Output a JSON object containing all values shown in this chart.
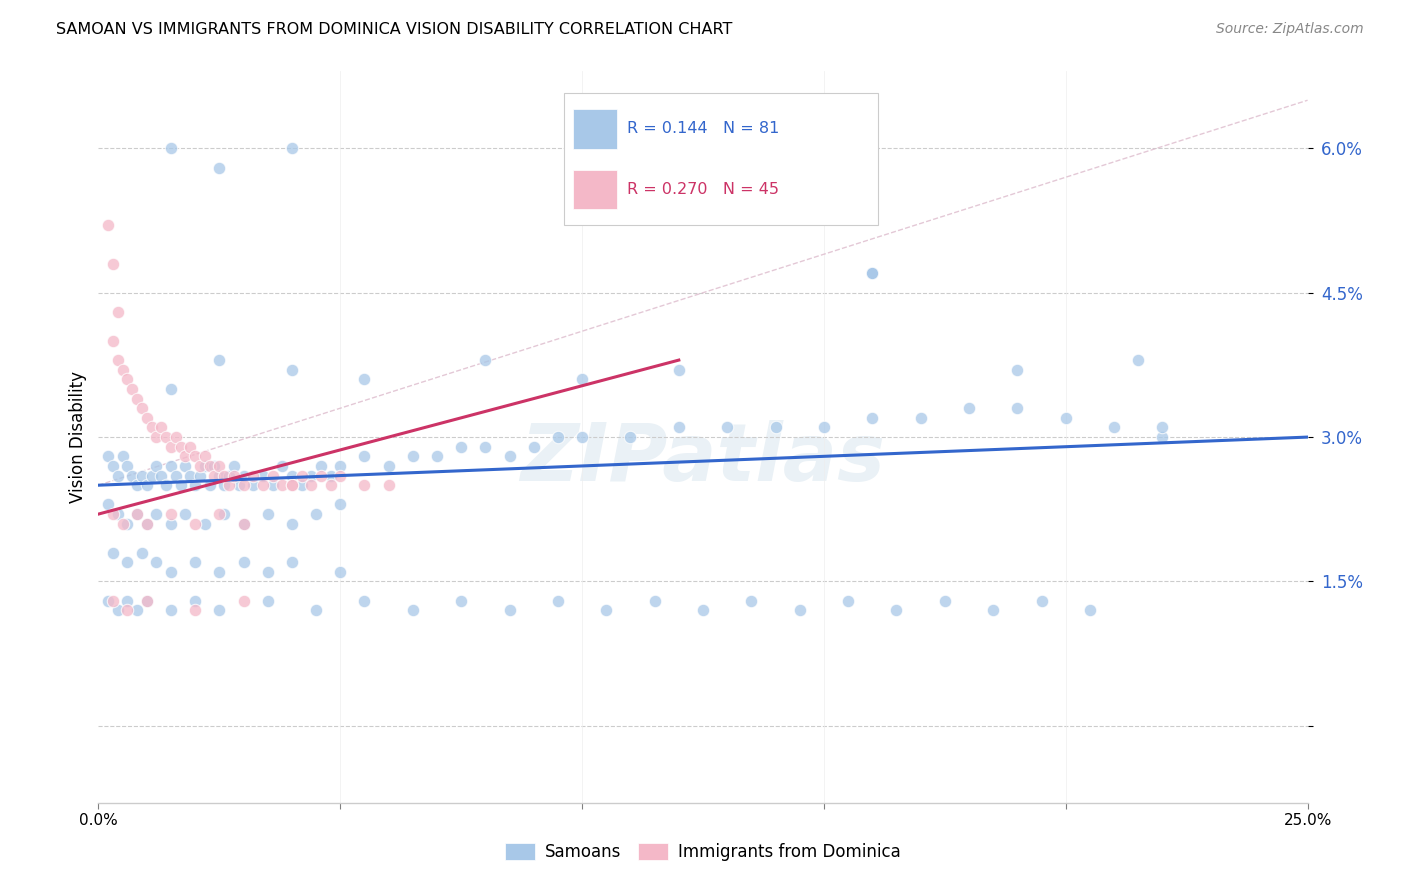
{
  "title": "SAMOAN VS IMMIGRANTS FROM DOMINICA VISION DISABILITY CORRELATION CHART",
  "source": "Source: ZipAtlas.com",
  "ylabel": "Vision Disability",
  "yticks": [
    0.0,
    0.015,
    0.03,
    0.045,
    0.06
  ],
  "ytick_labels": [
    "",
    "1.5%",
    "3.0%",
    "4.5%",
    "6.0%"
  ],
  "xlim": [
    0.0,
    0.25
  ],
  "ylim": [
    -0.008,
    0.068
  ],
  "watermark": "ZIPatlas",
  "blue_color": "#a8c8e8",
  "pink_color": "#f4b8c8",
  "blue_line_color": "#3366cc",
  "pink_line_color": "#cc3366",
  "dash_color": "#ddbbcc",
  "blue_scatter": [
    [
      0.002,
      0.028
    ],
    [
      0.003,
      0.027
    ],
    [
      0.004,
      0.026
    ],
    [
      0.005,
      0.028
    ],
    [
      0.006,
      0.027
    ],
    [
      0.007,
      0.026
    ],
    [
      0.008,
      0.025
    ],
    [
      0.009,
      0.026
    ],
    [
      0.01,
      0.025
    ],
    [
      0.011,
      0.026
    ],
    [
      0.012,
      0.027
    ],
    [
      0.013,
      0.026
    ],
    [
      0.014,
      0.025
    ],
    [
      0.015,
      0.027
    ],
    [
      0.016,
      0.026
    ],
    [
      0.017,
      0.025
    ],
    [
      0.018,
      0.027
    ],
    [
      0.019,
      0.026
    ],
    [
      0.02,
      0.025
    ],
    [
      0.021,
      0.026
    ],
    [
      0.022,
      0.027
    ],
    [
      0.023,
      0.025
    ],
    [
      0.024,
      0.027
    ],
    [
      0.025,
      0.026
    ],
    [
      0.026,
      0.025
    ],
    [
      0.027,
      0.026
    ],
    [
      0.028,
      0.027
    ],
    [
      0.029,
      0.025
    ],
    [
      0.03,
      0.026
    ],
    [
      0.032,
      0.025
    ],
    [
      0.034,
      0.026
    ],
    [
      0.036,
      0.025
    ],
    [
      0.038,
      0.027
    ],
    [
      0.04,
      0.026
    ],
    [
      0.042,
      0.025
    ],
    [
      0.044,
      0.026
    ],
    [
      0.046,
      0.027
    ],
    [
      0.048,
      0.026
    ],
    [
      0.05,
      0.027
    ],
    [
      0.055,
      0.028
    ],
    [
      0.06,
      0.027
    ],
    [
      0.065,
      0.028
    ],
    [
      0.07,
      0.028
    ],
    [
      0.075,
      0.029
    ],
    [
      0.08,
      0.029
    ],
    [
      0.085,
      0.028
    ],
    [
      0.09,
      0.029
    ],
    [
      0.095,
      0.03
    ],
    [
      0.1,
      0.03
    ],
    [
      0.11,
      0.03
    ],
    [
      0.12,
      0.031
    ],
    [
      0.13,
      0.031
    ],
    [
      0.14,
      0.031
    ],
    [
      0.15,
      0.031
    ],
    [
      0.16,
      0.032
    ],
    [
      0.17,
      0.032
    ],
    [
      0.18,
      0.033
    ],
    [
      0.19,
      0.033
    ],
    [
      0.2,
      0.032
    ],
    [
      0.21,
      0.031
    ],
    [
      0.22,
      0.03
    ],
    [
      0.002,
      0.023
    ],
    [
      0.004,
      0.022
    ],
    [
      0.006,
      0.021
    ],
    [
      0.008,
      0.022
    ],
    [
      0.01,
      0.021
    ],
    [
      0.012,
      0.022
    ],
    [
      0.015,
      0.021
    ],
    [
      0.018,
      0.022
    ],
    [
      0.022,
      0.021
    ],
    [
      0.026,
      0.022
    ],
    [
      0.03,
      0.021
    ],
    [
      0.035,
      0.022
    ],
    [
      0.04,
      0.021
    ],
    [
      0.045,
      0.022
    ],
    [
      0.05,
      0.023
    ],
    [
      0.003,
      0.018
    ],
    [
      0.006,
      0.017
    ],
    [
      0.009,
      0.018
    ],
    [
      0.012,
      0.017
    ],
    [
      0.015,
      0.016
    ],
    [
      0.02,
      0.017
    ],
    [
      0.025,
      0.016
    ],
    [
      0.03,
      0.017
    ],
    [
      0.035,
      0.016
    ],
    [
      0.04,
      0.017
    ],
    [
      0.05,
      0.016
    ],
    [
      0.015,
      0.035
    ],
    [
      0.025,
      0.038
    ],
    [
      0.04,
      0.037
    ],
    [
      0.055,
      0.036
    ],
    [
      0.08,
      0.038
    ],
    [
      0.1,
      0.036
    ],
    [
      0.12,
      0.037
    ],
    [
      0.16,
      0.047
    ],
    [
      0.19,
      0.037
    ],
    [
      0.215,
      0.038
    ],
    [
      0.015,
      0.06
    ],
    [
      0.025,
      0.058
    ],
    [
      0.04,
      0.06
    ],
    [
      0.16,
      0.047
    ],
    [
      0.1,
      0.053
    ],
    [
      0.002,
      0.013
    ],
    [
      0.004,
      0.012
    ],
    [
      0.006,
      0.013
    ],
    [
      0.008,
      0.012
    ],
    [
      0.01,
      0.013
    ],
    [
      0.015,
      0.012
    ],
    [
      0.02,
      0.013
    ],
    [
      0.025,
      0.012
    ],
    [
      0.035,
      0.013
    ],
    [
      0.045,
      0.012
    ],
    [
      0.055,
      0.013
    ],
    [
      0.065,
      0.012
    ],
    [
      0.075,
      0.013
    ],
    [
      0.085,
      0.012
    ],
    [
      0.095,
      0.013
    ],
    [
      0.105,
      0.012
    ],
    [
      0.115,
      0.013
    ],
    [
      0.125,
      0.012
    ],
    [
      0.135,
      0.013
    ],
    [
      0.145,
      0.012
    ],
    [
      0.155,
      0.013
    ],
    [
      0.165,
      0.012
    ],
    [
      0.175,
      0.013
    ],
    [
      0.185,
      0.012
    ],
    [
      0.195,
      0.013
    ],
    [
      0.205,
      0.012
    ],
    [
      0.16,
      0.047
    ],
    [
      0.22,
      0.031
    ]
  ],
  "pink_scatter": [
    [
      0.002,
      0.052
    ],
    [
      0.003,
      0.048
    ],
    [
      0.004,
      0.043
    ],
    [
      0.003,
      0.04
    ],
    [
      0.004,
      0.038
    ],
    [
      0.005,
      0.037
    ],
    [
      0.006,
      0.036
    ],
    [
      0.007,
      0.035
    ],
    [
      0.008,
      0.034
    ],
    [
      0.009,
      0.033
    ],
    [
      0.01,
      0.032
    ],
    [
      0.011,
      0.031
    ],
    [
      0.012,
      0.03
    ],
    [
      0.013,
      0.031
    ],
    [
      0.014,
      0.03
    ],
    [
      0.015,
      0.029
    ],
    [
      0.016,
      0.03
    ],
    [
      0.017,
      0.029
    ],
    [
      0.018,
      0.028
    ],
    [
      0.019,
      0.029
    ],
    [
      0.02,
      0.028
    ],
    [
      0.021,
      0.027
    ],
    [
      0.022,
      0.028
    ],
    [
      0.023,
      0.027
    ],
    [
      0.024,
      0.026
    ],
    [
      0.025,
      0.027
    ],
    [
      0.026,
      0.026
    ],
    [
      0.027,
      0.025
    ],
    [
      0.028,
      0.026
    ],
    [
      0.03,
      0.025
    ],
    [
      0.032,
      0.026
    ],
    [
      0.034,
      0.025
    ],
    [
      0.036,
      0.026
    ],
    [
      0.038,
      0.025
    ],
    [
      0.04,
      0.025
    ],
    [
      0.042,
      0.026
    ],
    [
      0.044,
      0.025
    ],
    [
      0.046,
      0.026
    ],
    [
      0.048,
      0.025
    ],
    [
      0.05,
      0.026
    ],
    [
      0.055,
      0.025
    ],
    [
      0.06,
      0.025
    ],
    [
      0.003,
      0.022
    ],
    [
      0.005,
      0.021
    ],
    [
      0.008,
      0.022
    ],
    [
      0.01,
      0.021
    ],
    [
      0.015,
      0.022
    ],
    [
      0.02,
      0.021
    ],
    [
      0.025,
      0.022
    ],
    [
      0.03,
      0.021
    ],
    [
      0.04,
      0.025
    ],
    [
      0.003,
      0.013
    ],
    [
      0.006,
      0.012
    ],
    [
      0.01,
      0.013
    ],
    [
      0.02,
      0.012
    ],
    [
      0.03,
      0.013
    ]
  ],
  "blue_line": [
    [
      0.0,
      0.025
    ],
    [
      0.25,
      0.03
    ]
  ],
  "pink_line": [
    [
      0.0,
      0.022
    ],
    [
      0.12,
      0.038
    ]
  ],
  "dash_line": [
    [
      0.0,
      0.025
    ],
    [
      0.25,
      0.065
    ]
  ]
}
